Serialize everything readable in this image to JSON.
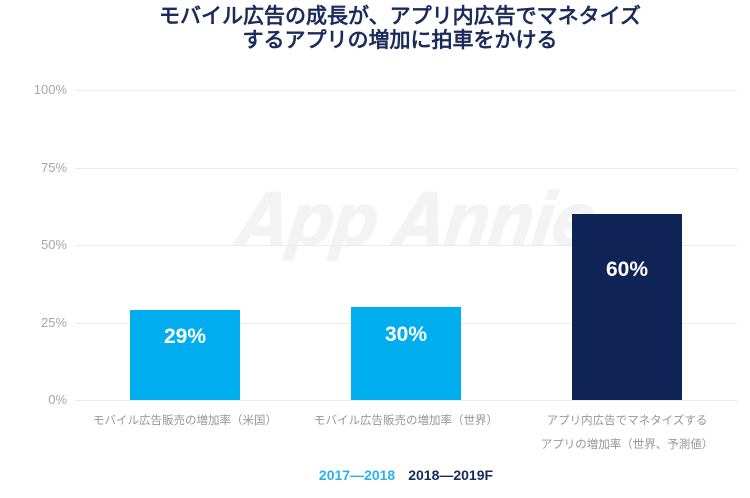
{
  "title": {
    "line1": "モバイル広告の成長が、アプリ内広告でマネタイズ",
    "line2": "するアプリの増加に拍車をかける"
  },
  "watermark": "App Annie",
  "colors": {
    "title_text": "#1A2B5C",
    "bar_cyan": "#00AEEF",
    "bar_navy": "#0F2356",
    "legend_cyan": "#2AB1EE",
    "legend_navy": "#152B5C",
    "y_tick_text": "#A7A7AC",
    "category_text": "#96969B",
    "gridline": "#ECECEC",
    "bar_value_text": "#FFFFFF",
    "watermark_text": "#F3F3F4",
    "background": "#FFFFFF"
  },
  "chart_data": {
    "type": "bar",
    "title": "モバイル広告の成長が、アプリ内広告でマネタイズするアプリの増加に拍車をかける",
    "categories": [
      "モバイル広告販売の増加率（米国）",
      "モバイル広告販売の増加率（世界）",
      "アプリ内広告でマネタイズするアプリの増加率（世界、予測値）"
    ],
    "category_lines": [
      [
        "モバイル広告販売の増加率（米国）"
      ],
      [
        "モバイル広告販売の増加率（世界）"
      ],
      [
        "アプリ内広告でマネタイズする",
        "アプリの増加率（世界、予測値）"
      ]
    ],
    "values": [
      29,
      30,
      60
    ],
    "value_labels": [
      "29%",
      "30%",
      "60%"
    ],
    "bar_colors": [
      "#00AEEF",
      "#00AEEF",
      "#0F2356"
    ],
    "series_membership": [
      "2017—2018",
      "2017—2018",
      "2018—2019F"
    ],
    "legend": [
      {
        "label": "2017—2018",
        "color": "#2AB1EE"
      },
      {
        "label": "2018—2019F",
        "color": "#152B5C"
      }
    ],
    "legend_position": "bottom-center",
    "y_ticks": [
      "0%",
      "25%",
      "50%",
      "75%",
      "100%"
    ],
    "ylim": [
      0,
      100
    ],
    "grid": true,
    "xlabel": "",
    "ylabel": "",
    "watermark": "App Annie"
  }
}
